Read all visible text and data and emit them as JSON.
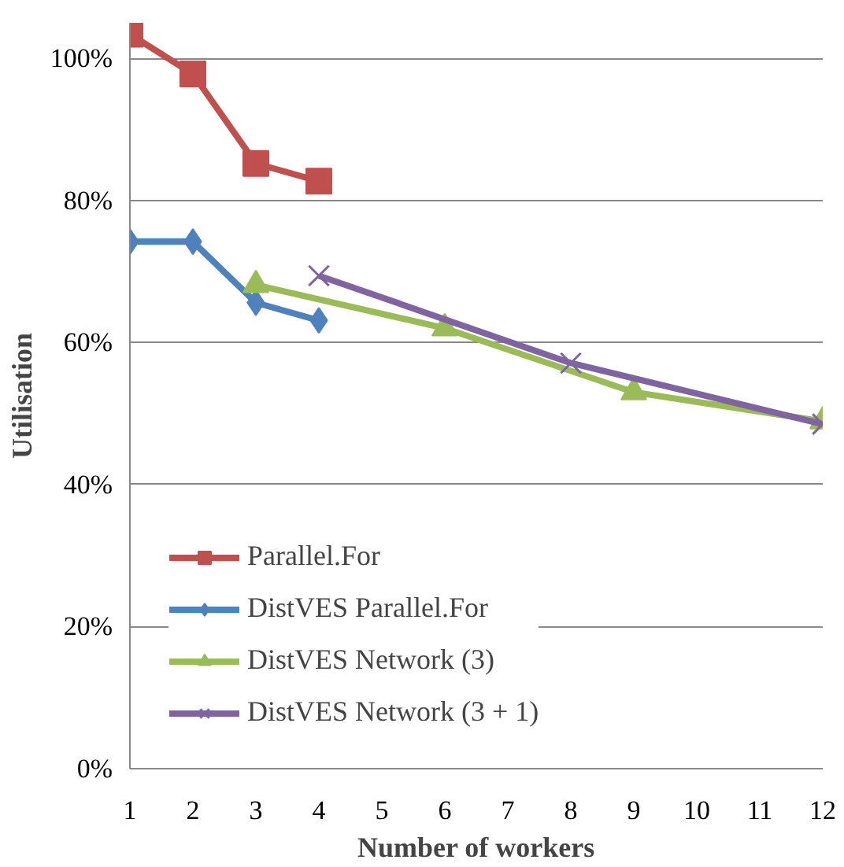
{
  "chart_data": {
    "type": "line",
    "xlabel": "Number of workers",
    "ylabel": "Utilisation",
    "xlim": [
      1,
      12
    ],
    "xticks": [
      1,
      2,
      3,
      4,
      5,
      6,
      7,
      8,
      9,
      10,
      11,
      12
    ],
    "ylim": [
      0,
      105
    ],
    "yticks": [
      {
        "value": 0,
        "label": "0%"
      },
      {
        "value": 20,
        "label": "20%"
      },
      {
        "value": 40,
        "label": "40%"
      },
      {
        "value": 60,
        "label": "60%"
      },
      {
        "value": 80,
        "label": "80%"
      },
      {
        "value": 100,
        "label": "100%"
      }
    ],
    "grid": "y",
    "legend": "bottom",
    "series": [
      {
        "name": "Parallel.For",
        "color": "#c0504d",
        "marker": "square",
        "x": [
          1,
          2,
          3,
          4
        ],
        "values": [
          103.4,
          97.8,
          85.2,
          82.7
        ]
      },
      {
        "name": "DistVES Parallel.For",
        "color": "#4f81bd",
        "marker": "diamond",
        "x": [
          1,
          2,
          3,
          4
        ],
        "values": [
          74.2,
          74.2,
          65.6,
          63.1
        ]
      },
      {
        "name": "DistVES Network (3)",
        "color": "#9bbb59",
        "marker": "triangle",
        "x": [
          3,
          6,
          9,
          12
        ],
        "values": [
          68.1,
          62.0,
          53.0,
          48.9
        ]
      },
      {
        "name": "DistVES Network (3 + 1)",
        "color": "#8064a2",
        "marker": "cross",
        "x": [
          4,
          8,
          12
        ],
        "values": [
          69.4,
          57.1,
          48.5
        ]
      }
    ]
  }
}
